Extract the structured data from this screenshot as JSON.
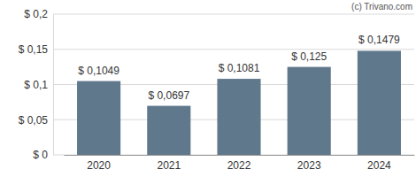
{
  "chart_data": {
    "type": "bar",
    "annotations": [
      "(c) Trivano.com"
    ],
    "categories": [
      "2020",
      "2021",
      "2022",
      "2023",
      "2024"
    ],
    "values": [
      0.1049,
      0.0697,
      0.1081,
      0.125,
      0.1479
    ],
    "value_labels": [
      "$ 0,1049",
      "$ 0,0697",
      "$ 0,1081",
      "$ 0,125",
      "$ 0,1479"
    ],
    "color": "#60788c",
    "ylim": [
      0,
      0.2
    ],
    "yticks": [
      {
        "value": 0,
        "label": "$ 0"
      },
      {
        "value": 0.05,
        "label": "$ 0,05"
      },
      {
        "value": 0.1,
        "label": "$ 0,1"
      },
      {
        "value": 0.15,
        "label": "$ 0,15"
      },
      {
        "value": 0.2,
        "label": "$ 0,2"
      }
    ],
    "grid": true,
    "data_labels": true
  }
}
